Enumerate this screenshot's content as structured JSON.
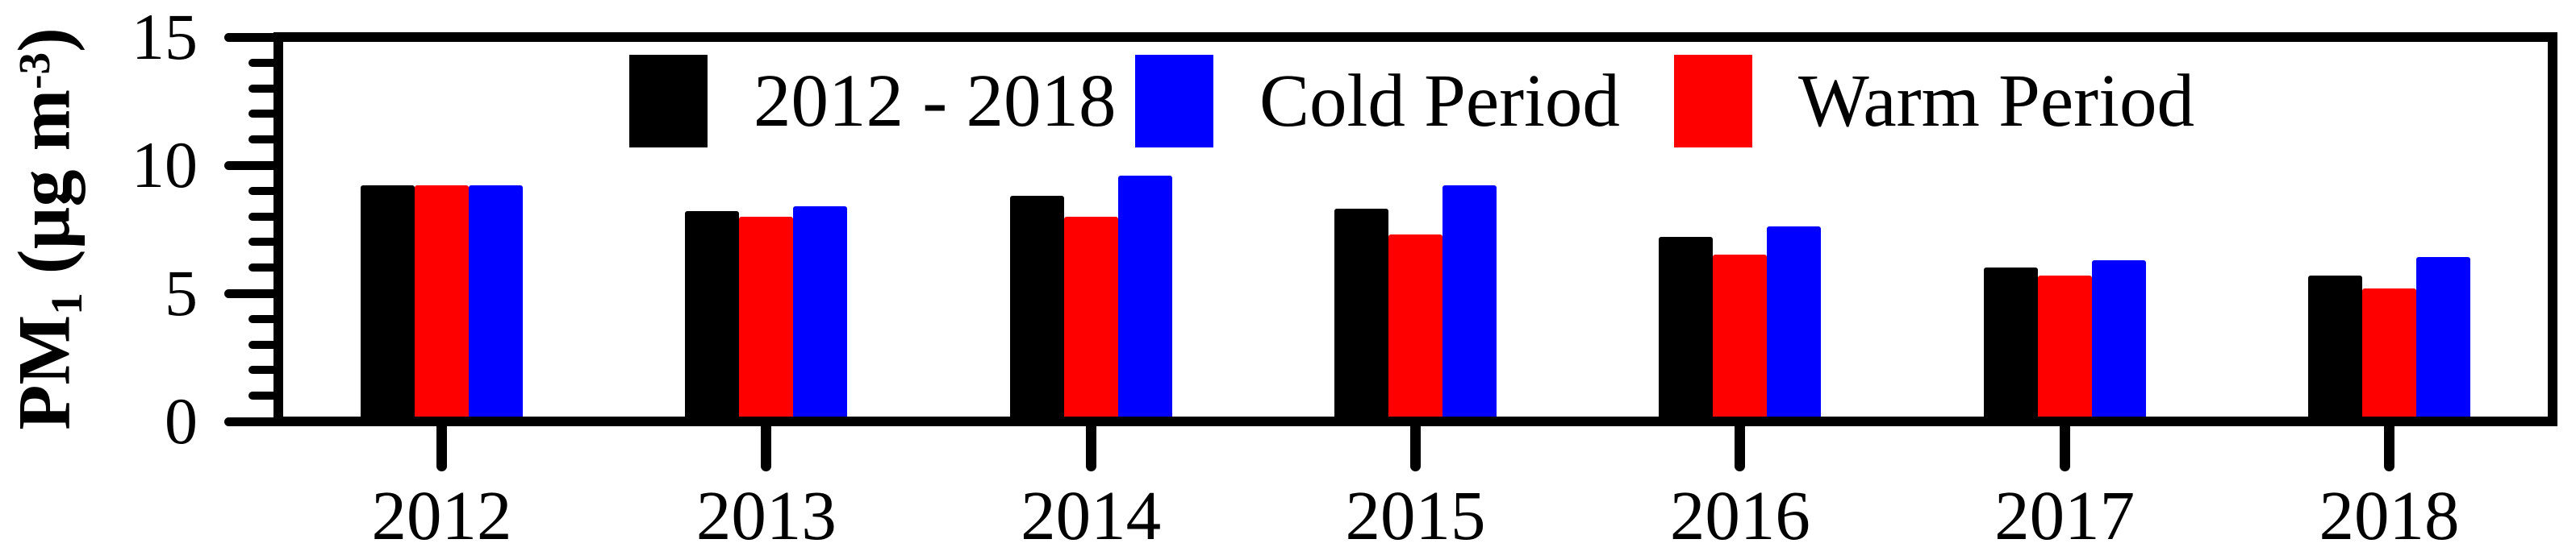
{
  "chart_data": {
    "type": "bar",
    "title": "",
    "ylabel_parts": {
      "prefix": "PM",
      "sub": "1",
      "mid": " (µg m",
      "sup": "-3",
      "suffix": ")"
    },
    "ylim": [
      0,
      15
    ],
    "yticks_major": [
      0,
      5,
      10,
      15
    ],
    "ytick_labels": [
      "0",
      "5",
      "10",
      "15"
    ],
    "yminor_step": 1,
    "categories": [
      "2012",
      "2013",
      "2014",
      "2015",
      "2016",
      "2017",
      "2018"
    ],
    "grid": false,
    "legend_position": "top-center-inside",
    "legend": [
      {
        "label": "2012 - 2018",
        "color": "#000000"
      },
      {
        "label": "Cold Period",
        "color": "#0000ff"
      },
      {
        "label": "Warm Period",
        "color": "#ff0000"
      }
    ],
    "series": [
      {
        "name": "2012 - 2018",
        "color": "#000000",
        "values": [
          9.2,
          8.2,
          8.8,
          8.3,
          7.2,
          6.0,
          5.7
        ]
      },
      {
        "name": "Warm Period",
        "color": "#ff0000",
        "values": [
          9.2,
          8.0,
          8.0,
          7.3,
          6.5,
          5.7,
          5.2
        ]
      },
      {
        "name": "Cold Period",
        "color": "#0000ff",
        "values": [
          9.2,
          8.4,
          9.6,
          9.2,
          7.6,
          6.3,
          6.4
        ]
      }
    ]
  }
}
